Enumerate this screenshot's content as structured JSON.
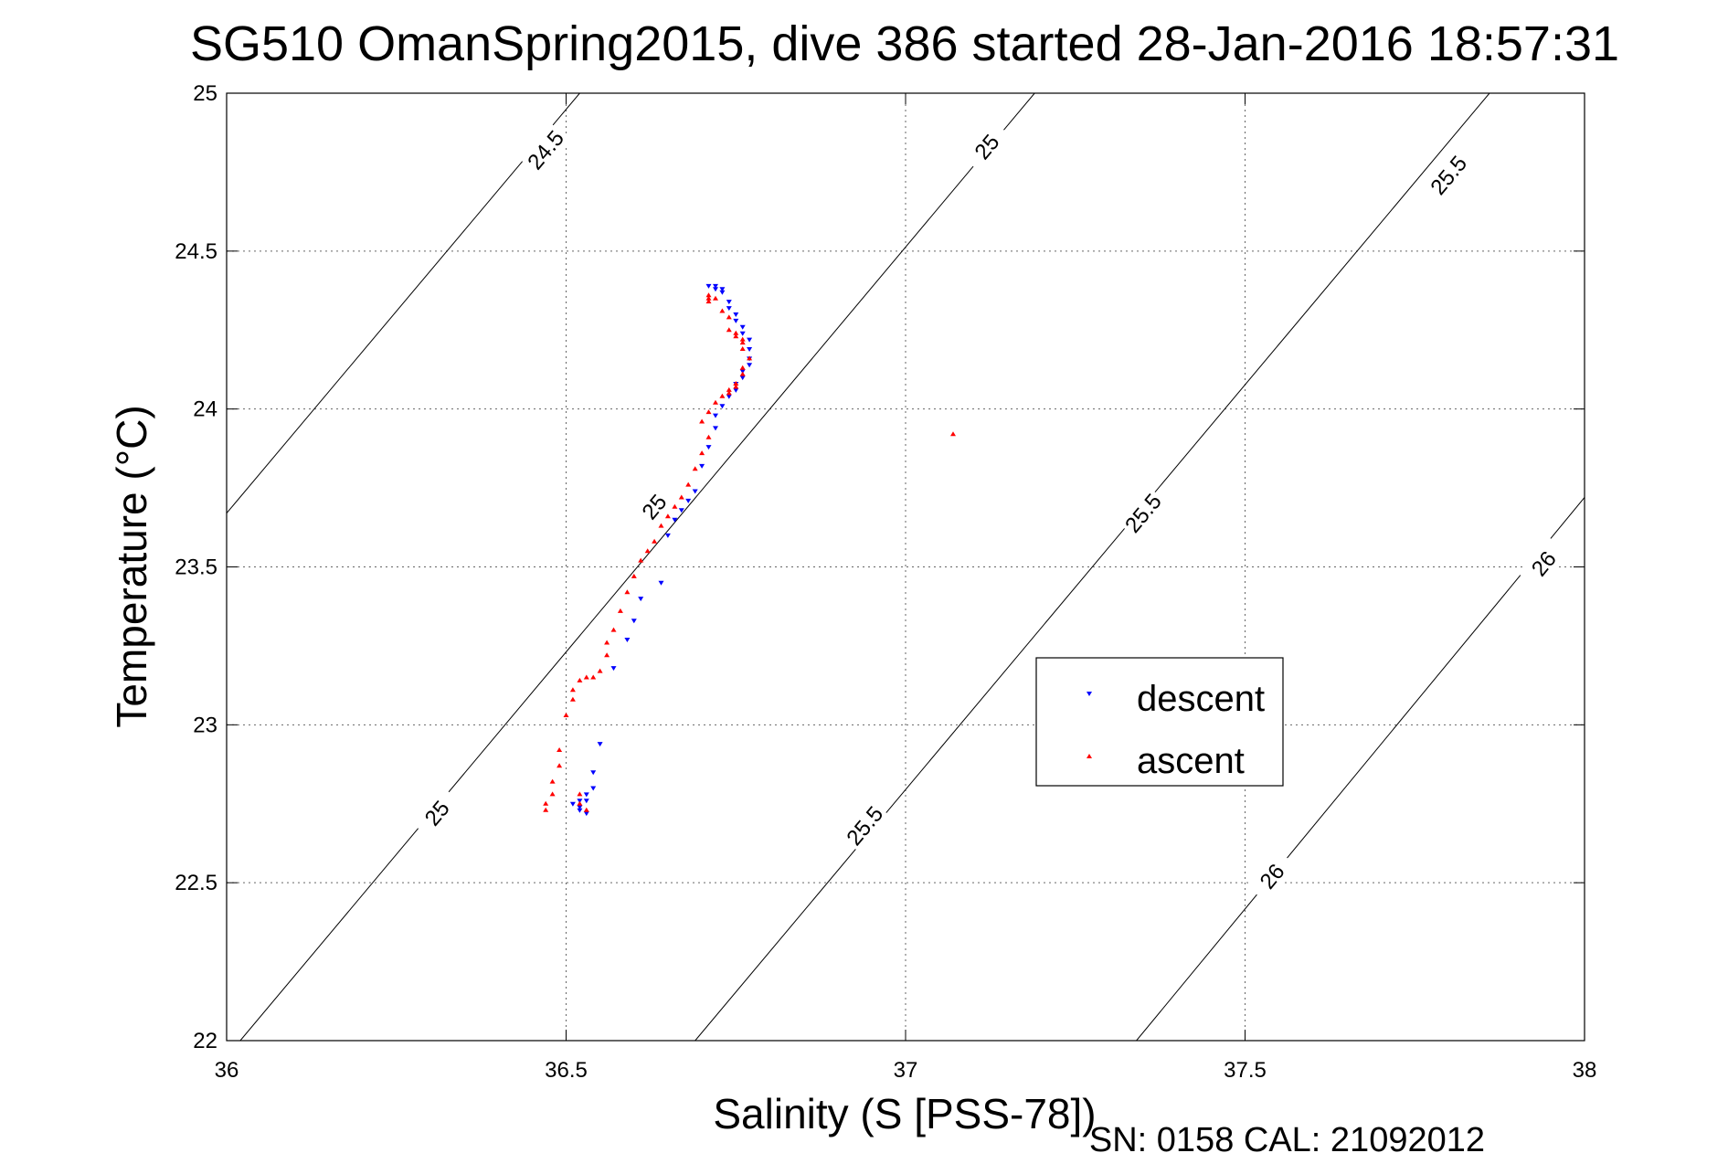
{
  "chart_data": {
    "type": "scatter",
    "title": "SG510 OmanSpring2015, dive 386 started 28-Jan-2016 18:57:31",
    "xlabel": "Salinity (S [PSS-78])",
    "ylabel": "Temperature (°C)",
    "footer": "SN: 0158  CAL: 21092012",
    "xlim": [
      36,
      38
    ],
    "ylim": [
      22,
      25
    ],
    "xticks": [
      36,
      36.5,
      37,
      37.5,
      38
    ],
    "yticks": [
      22,
      22.5,
      23,
      23.5,
      24,
      24.5,
      25
    ],
    "xtick_labels": [
      "36",
      "36.5",
      "37",
      "37.5",
      "38"
    ],
    "ytick_labels": [
      "22",
      "22.5",
      "23",
      "23.5",
      "24",
      "24.5",
      "25"
    ],
    "grid": true,
    "legend_position": "center-right",
    "contours": [
      {
        "level": "24.5",
        "segments": [
          [
            [
              36.0,
              23.67
            ],
            [
              36.52,
              25.0
            ]
          ]
        ],
        "labels": [
          [
            36.47,
            24.82
          ]
        ]
      },
      {
        "level": "25",
        "segments": [
          [
            [
              36.02,
              22.0
            ],
            [
              37.19,
              25.0
            ]
          ]
        ],
        "labels": [
          [
            36.31,
            22.72
          ],
          [
            36.63,
            23.69
          ],
          [
            37.12,
            24.83
          ]
        ]
      },
      {
        "level": "25.5",
        "segments": [
          [
            [
              36.69,
              22.0
            ],
            [
              37.86,
              25.0
            ]
          ]
        ],
        "labels": [
          [
            36.94,
            22.68
          ],
          [
            37.35,
            23.67
          ],
          [
            37.8,
            24.74
          ]
        ]
      },
      {
        "level": "26",
        "segments": [
          [
            [
              37.34,
              22.0
            ],
            [
              38.0,
              23.72
            ]
          ]
        ],
        "labels": [
          [
            37.54,
            22.52
          ],
          [
            37.94,
            23.51
          ]
        ]
      }
    ],
    "series": [
      {
        "name": "descent",
        "color": "#0000ff",
        "marker": "triangle-down",
        "points": [
          [
            36.71,
            24.39
          ],
          [
            36.72,
            24.39
          ],
          [
            36.72,
            24.38
          ],
          [
            36.73,
            24.38
          ],
          [
            36.73,
            24.37
          ],
          [
            36.74,
            24.34
          ],
          [
            36.74,
            24.32
          ],
          [
            36.75,
            24.3
          ],
          [
            36.75,
            24.28
          ],
          [
            36.76,
            24.26
          ],
          [
            36.76,
            24.24
          ],
          [
            36.77,
            24.22
          ],
          [
            36.77,
            24.19
          ],
          [
            36.77,
            24.16
          ],
          [
            36.77,
            24.14
          ],
          [
            36.76,
            24.12
          ],
          [
            36.76,
            24.1
          ],
          [
            36.75,
            24.08
          ],
          [
            36.75,
            24.06
          ],
          [
            36.74,
            24.04
          ],
          [
            36.73,
            24.01
          ],
          [
            36.72,
            23.98
          ],
          [
            36.72,
            23.94
          ],
          [
            36.71,
            23.88
          ],
          [
            36.7,
            23.82
          ],
          [
            36.69,
            23.74
          ],
          [
            36.68,
            23.71
          ],
          [
            36.67,
            23.68
          ],
          [
            36.66,
            23.65
          ],
          [
            36.65,
            23.6
          ],
          [
            36.64,
            23.45
          ],
          [
            36.61,
            23.4
          ],
          [
            36.6,
            23.33
          ],
          [
            36.59,
            23.27
          ],
          [
            36.57,
            23.18
          ],
          [
            36.55,
            22.94
          ],
          [
            36.54,
            22.85
          ],
          [
            36.54,
            22.8
          ],
          [
            36.53,
            22.78
          ],
          [
            36.53,
            22.76
          ],
          [
            36.52,
            22.76
          ],
          [
            36.52,
            22.74
          ],
          [
            36.51,
            22.75
          ],
          [
            36.52,
            22.73
          ],
          [
            36.53,
            22.72
          ]
        ]
      },
      {
        "name": "ascent",
        "color": "#ff0000",
        "marker": "triangle-up",
        "points": [
          [
            36.71,
            24.36
          ],
          [
            36.71,
            24.35
          ],
          [
            36.71,
            24.34
          ],
          [
            36.72,
            24.35
          ],
          [
            36.73,
            24.31
          ],
          [
            36.74,
            24.29
          ],
          [
            36.74,
            24.25
          ],
          [
            36.75,
            24.24
          ],
          [
            36.75,
            24.23
          ],
          [
            36.76,
            24.22
          ],
          [
            36.76,
            24.21
          ],
          [
            36.76,
            24.19
          ],
          [
            36.77,
            24.16
          ],
          [
            36.76,
            24.13
          ],
          [
            36.76,
            24.11
          ],
          [
            36.75,
            24.08
          ],
          [
            36.75,
            24.07
          ],
          [
            36.74,
            24.06
          ],
          [
            36.74,
            24.05
          ],
          [
            36.73,
            24.04
          ],
          [
            36.72,
            24.02
          ],
          [
            36.71,
            23.99
          ],
          [
            36.7,
            23.96
          ],
          [
            36.71,
            23.91
          ],
          [
            36.7,
            23.86
          ],
          [
            36.69,
            23.81
          ],
          [
            36.68,
            23.76
          ],
          [
            36.67,
            23.72
          ],
          [
            36.66,
            23.69
          ],
          [
            36.65,
            23.66
          ],
          [
            36.64,
            23.63
          ],
          [
            36.63,
            23.58
          ],
          [
            36.62,
            23.55
          ],
          [
            36.61,
            23.52
          ],
          [
            36.6,
            23.47
          ],
          [
            36.59,
            23.42
          ],
          [
            36.58,
            23.36
          ],
          [
            36.57,
            23.3
          ],
          [
            36.56,
            23.26
          ],
          [
            36.56,
            23.22
          ],
          [
            36.55,
            23.17
          ],
          [
            36.54,
            23.15
          ],
          [
            36.53,
            23.15
          ],
          [
            36.52,
            23.14
          ],
          [
            36.51,
            23.11
          ],
          [
            36.51,
            23.08
          ],
          [
            36.5,
            23.03
          ],
          [
            36.49,
            22.92
          ],
          [
            36.49,
            22.87
          ],
          [
            36.48,
            22.82
          ],
          [
            36.48,
            22.78
          ],
          [
            36.47,
            22.75
          ],
          [
            36.47,
            22.73
          ],
          [
            36.52,
            22.78
          ],
          [
            36.52,
            22.75
          ],
          [
            36.53,
            22.73
          ],
          [
            37.07,
            23.92
          ]
        ]
      }
    ]
  }
}
